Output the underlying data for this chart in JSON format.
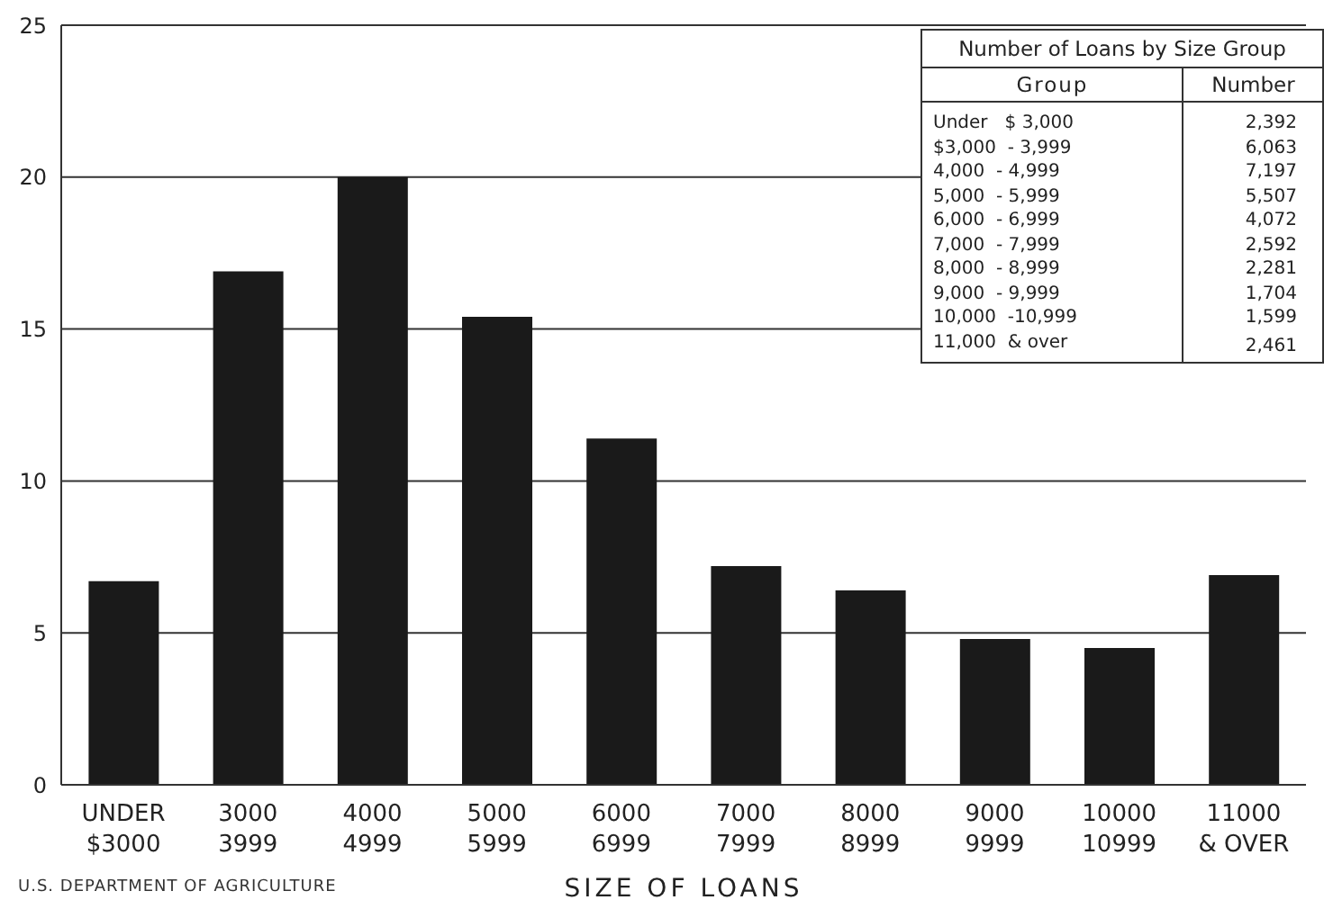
{
  "chart_data": {
    "type": "bar",
    "xlabel": "SIZE OF LOANS",
    "categories": [
      "UNDER\n$3000",
      "3000\n3999",
      "4000\n4999",
      "5000\n5999",
      "6000\n6999",
      "7000\n7999",
      "8000\n8999",
      "9000\n9999",
      "10000\n10999",
      "11000\n& OVER"
    ],
    "values": [
      6.7,
      16.9,
      20.0,
      15.4,
      11.4,
      7.2,
      6.4,
      4.8,
      4.5,
      6.9
    ],
    "color": "#1a1a1a",
    "ylim": [
      0,
      25
    ],
    "yticks": [
      0,
      5,
      10,
      15,
      20,
      25
    ],
    "grid": "y",
    "annotations": [
      "U.S. DEPARTMENT OF AGRICULTURE",
      "Number of Loans by Size Group",
      "Group",
      "Number",
      "Under   $ 3,000",
      "2,392",
      "$3,000  - 3,999",
      "6,063",
      "4,000  - 4,999",
      "7,197",
      "5,000  - 5,999",
      "5,507",
      "6,000  - 6,999",
      "4,072",
      "7,000  - 7,999",
      "2,592",
      "8,000  - 8,999",
      "2,281",
      "9,000  - 9,999",
      "1,704",
      "10,000  -10,999",
      "1,599",
      "11,000  & over",
      "2,461"
    ]
  }
}
